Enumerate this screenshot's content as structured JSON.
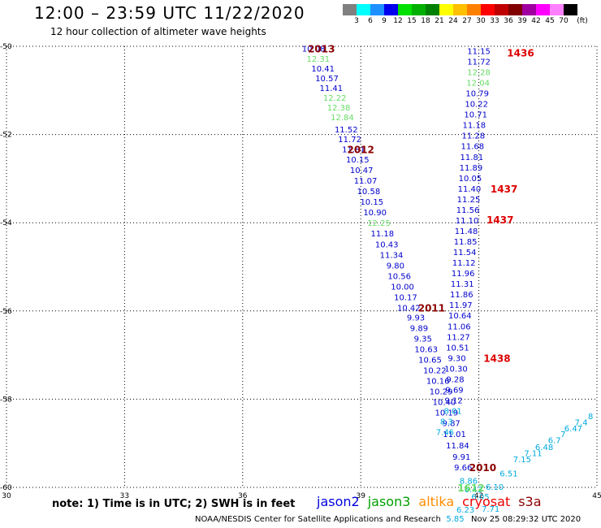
{
  "header": {
    "title": "12:00 – 23:59 UTC 11/22/2020",
    "subtitle": "12 hour collection of altimeter wave heights"
  },
  "colorbar": {
    "unit_label": "(ft)",
    "bins": [
      {
        "color": "#808080",
        "label": "3"
      },
      {
        "color": "#00ffff",
        "label": "6"
      },
      {
        "color": "#1e90ff",
        "label": "9"
      },
      {
        "color": "#0000ee",
        "label": "12"
      },
      {
        "color": "#00e000",
        "label": "15"
      },
      {
        "color": "#00b000",
        "label": "18"
      },
      {
        "color": "#008000",
        "label": "21"
      },
      {
        "color": "#ffff00",
        "label": "24"
      },
      {
        "color": "#ffc000",
        "label": "27"
      },
      {
        "color": "#ff8000",
        "label": "30"
      },
      {
        "color": "#ff0000",
        "label": "33"
      },
      {
        "color": "#c00000",
        "label": "36"
      },
      {
        "color": "#800000",
        "label": "39"
      },
      {
        "color": "#a000a0",
        "label": "42"
      },
      {
        "color": "#ff00ff",
        "label": "45"
      },
      {
        "color": "#ff80ff",
        "label": "70"
      },
      {
        "color": "#000000",
        "label": ""
      }
    ]
  },
  "chart_data": {
    "type": "scatter",
    "xlim": [
      30,
      45
    ],
    "ylim": [
      -60,
      -50
    ],
    "x_ticks": [
      "30",
      "33",
      "36",
      "39",
      "42",
      "45"
    ],
    "y_ticks": [
      "-50",
      "-52",
      "-54",
      "-56",
      "-58",
      "-60"
    ],
    "grid": true,
    "series_colors": {
      "jason2": "#0000cc",
      "jason3": "#66dd66",
      "altika": "#ff8c00",
      "cryosat": "#dd0000",
      "s3a": "#8b0000",
      "sat": "#00aadd"
    },
    "points": [
      {
        "lon": 37.8,
        "lat": -50.05,
        "v": "10.08",
        "s": "jason2"
      },
      {
        "lon": 37.92,
        "lat": -50.28,
        "v": "12.31",
        "s": "jason3"
      },
      {
        "lon": 38.04,
        "lat": -50.5,
        "v": "10.41",
        "s": "jason2"
      },
      {
        "lon": 38.14,
        "lat": -50.72,
        "v": "10.57",
        "s": "jason2"
      },
      {
        "lon": 38.25,
        "lat": -50.94,
        "v": "11.41",
        "s": "jason2"
      },
      {
        "lon": 38.34,
        "lat": -51.16,
        "v": "12.22",
        "s": "jason3"
      },
      {
        "lon": 38.44,
        "lat": -51.38,
        "v": "12.38",
        "s": "jason3"
      },
      {
        "lon": 38.53,
        "lat": -51.6,
        "v": "12.84",
        "s": "jason3"
      },
      {
        "lon": 38.63,
        "lat": -51.88,
        "v": "11.52",
        "s": "jason2"
      },
      {
        "lon": 38.72,
        "lat": -52.1,
        "v": "11.72",
        "s": "jason2"
      },
      {
        "lon": 38.82,
        "lat": -52.33,
        "v": "11.81",
        "s": "jason2"
      },
      {
        "lon": 38.92,
        "lat": -52.56,
        "v": "10.15",
        "s": "jason2"
      },
      {
        "lon": 39.02,
        "lat": -52.8,
        "v": "10.47",
        "s": "jason2"
      },
      {
        "lon": 39.12,
        "lat": -53.04,
        "v": "11.07",
        "s": "jason2"
      },
      {
        "lon": 39.2,
        "lat": -53.28,
        "v": "10.58",
        "s": "jason2"
      },
      {
        "lon": 39.28,
        "lat": -53.52,
        "v": "10.15",
        "s": "jason2"
      },
      {
        "lon": 39.36,
        "lat": -53.76,
        "v": "10.90",
        "s": "jason2"
      },
      {
        "lon": 39.46,
        "lat": -54.0,
        "v": "12.25",
        "s": "jason3"
      },
      {
        "lon": 39.55,
        "lat": -54.24,
        "v": "11.18",
        "s": "jason2"
      },
      {
        "lon": 39.66,
        "lat": -54.48,
        "v": "10.43",
        "s": "jason2"
      },
      {
        "lon": 39.78,
        "lat": -54.72,
        "v": "11.34",
        "s": "jason2"
      },
      {
        "lon": 39.88,
        "lat": -54.96,
        "v": "9.80",
        "s": "jason2"
      },
      {
        "lon": 39.98,
        "lat": -55.2,
        "v": "10.56",
        "s": "jason2"
      },
      {
        "lon": 40.06,
        "lat": -55.44,
        "v": "10.00",
        "s": "jason2"
      },
      {
        "lon": 40.14,
        "lat": -55.68,
        "v": "10.17",
        "s": "jason2"
      },
      {
        "lon": 40.22,
        "lat": -55.92,
        "v": "10.42",
        "s": "jason2"
      },
      {
        "lon": 40.4,
        "lat": -56.14,
        "v": "9.93",
        "s": "jason2"
      },
      {
        "lon": 40.48,
        "lat": -56.38,
        "v": "9.89",
        "s": "jason2"
      },
      {
        "lon": 40.58,
        "lat": -56.62,
        "v": "9.35",
        "s": "jason2"
      },
      {
        "lon": 40.66,
        "lat": -56.86,
        "v": "10.63",
        "s": "jason2"
      },
      {
        "lon": 40.76,
        "lat": -57.1,
        "v": "10.65",
        "s": "jason2"
      },
      {
        "lon": 40.88,
        "lat": -57.34,
        "v": "10.22",
        "s": "jason2"
      },
      {
        "lon": 40.96,
        "lat": -57.58,
        "v": "10.16",
        "s": "jason2"
      },
      {
        "lon": 41.04,
        "lat": -57.82,
        "v": "10.29",
        "s": "jason2"
      },
      {
        "lon": 41.12,
        "lat": -58.06,
        "v": "10.40",
        "s": "jason2"
      },
      {
        "lon": 41.18,
        "lat": -58.3,
        "v": "10.19",
        "s": "jason2"
      },
      {
        "lon": 41.3,
        "lat": -58.54,
        "v": "9.87",
        "s": "jason2"
      },
      {
        "lon": 41.38,
        "lat": -58.78,
        "v": "11.01",
        "s": "jason2"
      },
      {
        "lon": 41.46,
        "lat": -59.04,
        "v": "11.84",
        "s": "jason2"
      },
      {
        "lon": 41.56,
        "lat": -59.3,
        "v": "9.91",
        "s": "jason2"
      },
      {
        "lon": 41.6,
        "lat": -59.54,
        "v": "9.66",
        "s": "jason2"
      },
      {
        "lon": 42.0,
        "lat": -50.1,
        "v": "11.15",
        "s": "jason2"
      },
      {
        "lon": 42.0,
        "lat": -50.34,
        "v": "11.72",
        "s": "jason2"
      },
      {
        "lon": 42.0,
        "lat": -50.58,
        "v": "12.28",
        "s": "jason3"
      },
      {
        "lon": 41.98,
        "lat": -50.82,
        "v": "12.04",
        "s": "jason3"
      },
      {
        "lon": 41.96,
        "lat": -51.06,
        "v": "10.79",
        "s": "jason2"
      },
      {
        "lon": 41.94,
        "lat": -51.3,
        "v": "10.22",
        "s": "jason2"
      },
      {
        "lon": 41.92,
        "lat": -51.54,
        "v": "10.71",
        "s": "jason2"
      },
      {
        "lon": 41.88,
        "lat": -51.78,
        "v": "11.18",
        "s": "jason2"
      },
      {
        "lon": 41.86,
        "lat": -52.02,
        "v": "11.28",
        "s": "jason2"
      },
      {
        "lon": 41.84,
        "lat": -52.26,
        "v": "11.68",
        "s": "jason2"
      },
      {
        "lon": 41.82,
        "lat": -52.5,
        "v": "11.81",
        "s": "jason2"
      },
      {
        "lon": 41.8,
        "lat": -52.74,
        "v": "11.89",
        "s": "jason2"
      },
      {
        "lon": 41.78,
        "lat": -52.98,
        "v": "10.05",
        "s": "jason2"
      },
      {
        "lon": 41.76,
        "lat": -53.22,
        "v": "11.40",
        "s": "jason2"
      },
      {
        "lon": 41.74,
        "lat": -53.46,
        "v": "11.25",
        "s": "jason2"
      },
      {
        "lon": 41.72,
        "lat": -53.7,
        "v": "11.56",
        "s": "jason2"
      },
      {
        "lon": 41.7,
        "lat": -53.94,
        "v": "11.10",
        "s": "jason2"
      },
      {
        "lon": 41.68,
        "lat": -54.18,
        "v": "11.48",
        "s": "jason2"
      },
      {
        "lon": 41.66,
        "lat": -54.42,
        "v": "11.85",
        "s": "jason2"
      },
      {
        "lon": 41.64,
        "lat": -54.66,
        "v": "11.54",
        "s": "jason2"
      },
      {
        "lon": 41.62,
        "lat": -54.9,
        "v": "11.12",
        "s": "jason2"
      },
      {
        "lon": 41.6,
        "lat": -55.14,
        "v": "11.96",
        "s": "jason2"
      },
      {
        "lon": 41.58,
        "lat": -55.38,
        "v": "11.31",
        "s": "jason2"
      },
      {
        "lon": 41.56,
        "lat": -55.62,
        "v": "11.86",
        "s": "jason2"
      },
      {
        "lon": 41.54,
        "lat": -55.86,
        "v": "11.97",
        "s": "jason2"
      },
      {
        "lon": 41.52,
        "lat": -56.1,
        "v": "10.64",
        "s": "jason2"
      },
      {
        "lon": 41.5,
        "lat": -56.34,
        "v": "11.06",
        "s": "jason2"
      },
      {
        "lon": 41.48,
        "lat": -56.58,
        "v": "11.27",
        "s": "jason2"
      },
      {
        "lon": 41.46,
        "lat": -56.82,
        "v": "10.51",
        "s": "jason2"
      },
      {
        "lon": 41.44,
        "lat": -57.06,
        "v": "9.30",
        "s": "jason2"
      },
      {
        "lon": 41.42,
        "lat": -57.3,
        "v": "10.30",
        "s": "jason2"
      },
      {
        "lon": 41.4,
        "lat": -57.54,
        "v": "9.28",
        "s": "jason2"
      },
      {
        "lon": 41.38,
        "lat": -57.78,
        "v": "9.69",
        "s": "jason2"
      },
      {
        "lon": 41.36,
        "lat": -58.02,
        "v": "9.12",
        "s": "jason2"
      },
      {
        "lon": 41.34,
        "lat": -58.26,
        "v": "8.01",
        "s": "sat"
      },
      {
        "lon": 41.18,
        "lat": -58.5,
        "v": "8.3",
        "s": "sat"
      },
      {
        "lon": 41.14,
        "lat": -58.74,
        "v": "7.46",
        "s": "sat"
      },
      {
        "lon": 41.74,
        "lat": -59.84,
        "v": "8.86",
        "s": "sat"
      },
      {
        "lon": 41.86,
        "lat": -60.04,
        "v": "6.43",
        "s": "sat"
      },
      {
        "lon": 42.04,
        "lat": -60.2,
        "v": "6.05",
        "s": "sat"
      },
      {
        "lon": 41.66,
        "lat": -60.5,
        "v": "6.23",
        "s": "sat"
      },
      {
        "lon": 41.4,
        "lat": -60.7,
        "v": "5.85",
        "s": "sat"
      },
      {
        "lon": 42.3,
        "lat": -60.48,
        "v": "7.71",
        "s": "sat"
      },
      {
        "lon": 42.4,
        "lat": -59.98,
        "v": "6.10",
        "s": "sat"
      },
      {
        "lon": 42.76,
        "lat": -59.68,
        "v": "6.51",
        "s": "sat"
      },
      {
        "lon": 43.1,
        "lat": -59.36,
        "v": "7.15",
        "s": "sat"
      },
      {
        "lon": 43.38,
        "lat": -59.22,
        "v": "7.11",
        "s": "sat"
      },
      {
        "lon": 43.66,
        "lat": -59.08,
        "v": "6.48",
        "s": "sat"
      },
      {
        "lon": 43.92,
        "lat": -58.92,
        "v": "6.7",
        "s": "sat"
      },
      {
        "lon": 44.14,
        "lat": -58.78,
        "v": "7",
        "s": "sat"
      },
      {
        "lon": 44.4,
        "lat": -58.66,
        "v": "6.47",
        "s": "sat"
      },
      {
        "lon": 44.6,
        "lat": -58.52,
        "v": "7.4",
        "s": "sat"
      },
      {
        "lon": 44.84,
        "lat": -58.38,
        "v": "8",
        "s": "sat"
      }
    ],
    "time_labels": [
      {
        "lon": 38.0,
        "lat": -50.05,
        "text": "2013",
        "s": "s3a"
      },
      {
        "lon": 39.0,
        "lat": -52.33,
        "text": "2012",
        "s": "s3a"
      },
      {
        "lon": 40.8,
        "lat": -55.92,
        "text": "2011",
        "s": "s3a"
      },
      {
        "lon": 42.1,
        "lat": -59.54,
        "text": "2010",
        "s": "s3a"
      },
      {
        "lon": 41.8,
        "lat": -60.0,
        "text": "1612",
        "s": "jason3"
      },
      {
        "lon": 43.06,
        "lat": -50.14,
        "text": "1436",
        "s": "cryosat"
      },
      {
        "lon": 42.64,
        "lat": -53.22,
        "text": "1437",
        "s": "cryosat"
      },
      {
        "lon": 42.54,
        "lat": -53.92,
        "text": "1437",
        "s": "cryosat"
      },
      {
        "lon": 42.46,
        "lat": -57.06,
        "text": "1438",
        "s": "cryosat"
      }
    ]
  },
  "footer": {
    "note": "note:  1) Time is in UTC; 2) SWH is in feet",
    "legend": [
      {
        "label": "jason2",
        "color": "#0000dd"
      },
      {
        "label": "jason3",
        "color": "#00a000"
      },
      {
        "label": "altika",
        "color": "#ff8c00"
      },
      {
        "label": "cryosat",
        "color": "#ee0000"
      },
      {
        "label": "s3a",
        "color": "#8b0000"
      }
    ],
    "credit": "NOAA/NESDIS Center for Satellite Applications and Research",
    "timestamp": "Nov 25 08:29:32 UTC 2020"
  }
}
